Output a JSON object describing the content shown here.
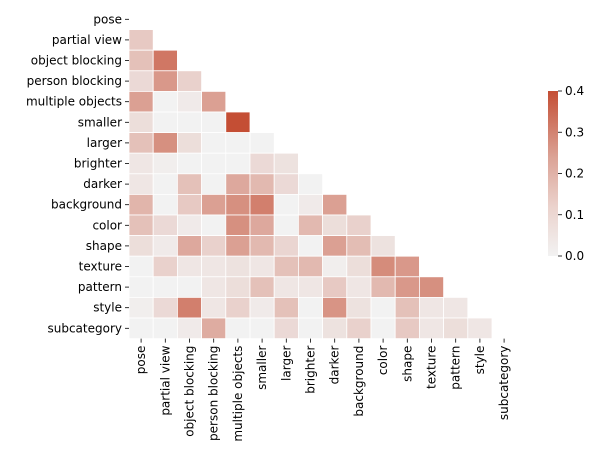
{
  "chart_data": {
    "type": "heatmap",
    "title": "",
    "xlabel": "",
    "ylabel": "",
    "mask": "upper-triangle-including-diagonal",
    "labels": [
      "pose",
      "partial view",
      "object blocking",
      "person blocking",
      "multiple objects",
      "smaller",
      "larger",
      "brighter",
      "darker",
      "background",
      "color",
      "shape",
      "texture",
      "pattern",
      "style",
      "subcategory"
    ],
    "values": [
      [],
      [
        0.1
      ],
      [
        0.12,
        0.3
      ],
      [
        0.06,
        0.22,
        0.08
      ],
      [
        0.2,
        0.0,
        0.02,
        0.2
      ],
      [
        0.05,
        0.0,
        0.0,
        -0.01,
        0.4
      ],
      [
        0.12,
        0.24,
        0.05,
        0.0,
        -0.01,
        -0.01
      ],
      [
        0.03,
        0.01,
        0.0,
        -0.01,
        0.0,
        0.06,
        0.04
      ],
      [
        0.03,
        0.0,
        0.12,
        0.0,
        0.18,
        0.14,
        0.06,
        -0.01
      ],
      [
        0.15,
        0.0,
        0.1,
        0.2,
        0.24,
        0.28,
        0.0,
        0.02,
        0.2
      ],
      [
        0.12,
        0.06,
        0.02,
        -0.01,
        0.24,
        0.18,
        -0.01,
        0.14,
        0.05,
        0.08
      ],
      [
        0.05,
        0.02,
        0.18,
        0.08,
        0.2,
        0.14,
        0.07,
        -0.01,
        0.2,
        0.13,
        0.04
      ],
      [
        0.0,
        0.08,
        0.03,
        0.03,
        0.04,
        0.03,
        0.12,
        0.14,
        0.01,
        0.05,
        0.25,
        0.22
      ],
      [
        0.0,
        0.0,
        -0.01,
        0.03,
        0.05,
        0.12,
        0.03,
        0.03,
        0.1,
        0.03,
        0.14,
        0.22,
        0.24
      ],
      [
        0.01,
        0.06,
        0.28,
        0.03,
        0.08,
        0.02,
        0.12,
        0.0,
        0.23,
        0.04,
        -0.01,
        0.12,
        0.03,
        0.03
      ],
      [
        0.0,
        0.0,
        0.02,
        0.17,
        0.0,
        0.0,
        0.06,
        0.0,
        0.04,
        0.08,
        0.0,
        0.1,
        0.03,
        0.05,
        0.03
      ]
    ],
    "colorbar": {
      "range": [
        0.0,
        0.4
      ],
      "ticks": [
        "0.0",
        "0.1",
        "0.2",
        "0.3",
        "0.4"
      ],
      "colormap": "diverging (neutral at 0 → red at 0.4)",
      "low_color": "#e7f0f5",
      "mid_color": "#f2f2f2",
      "high_color": "#c44e34"
    }
  }
}
